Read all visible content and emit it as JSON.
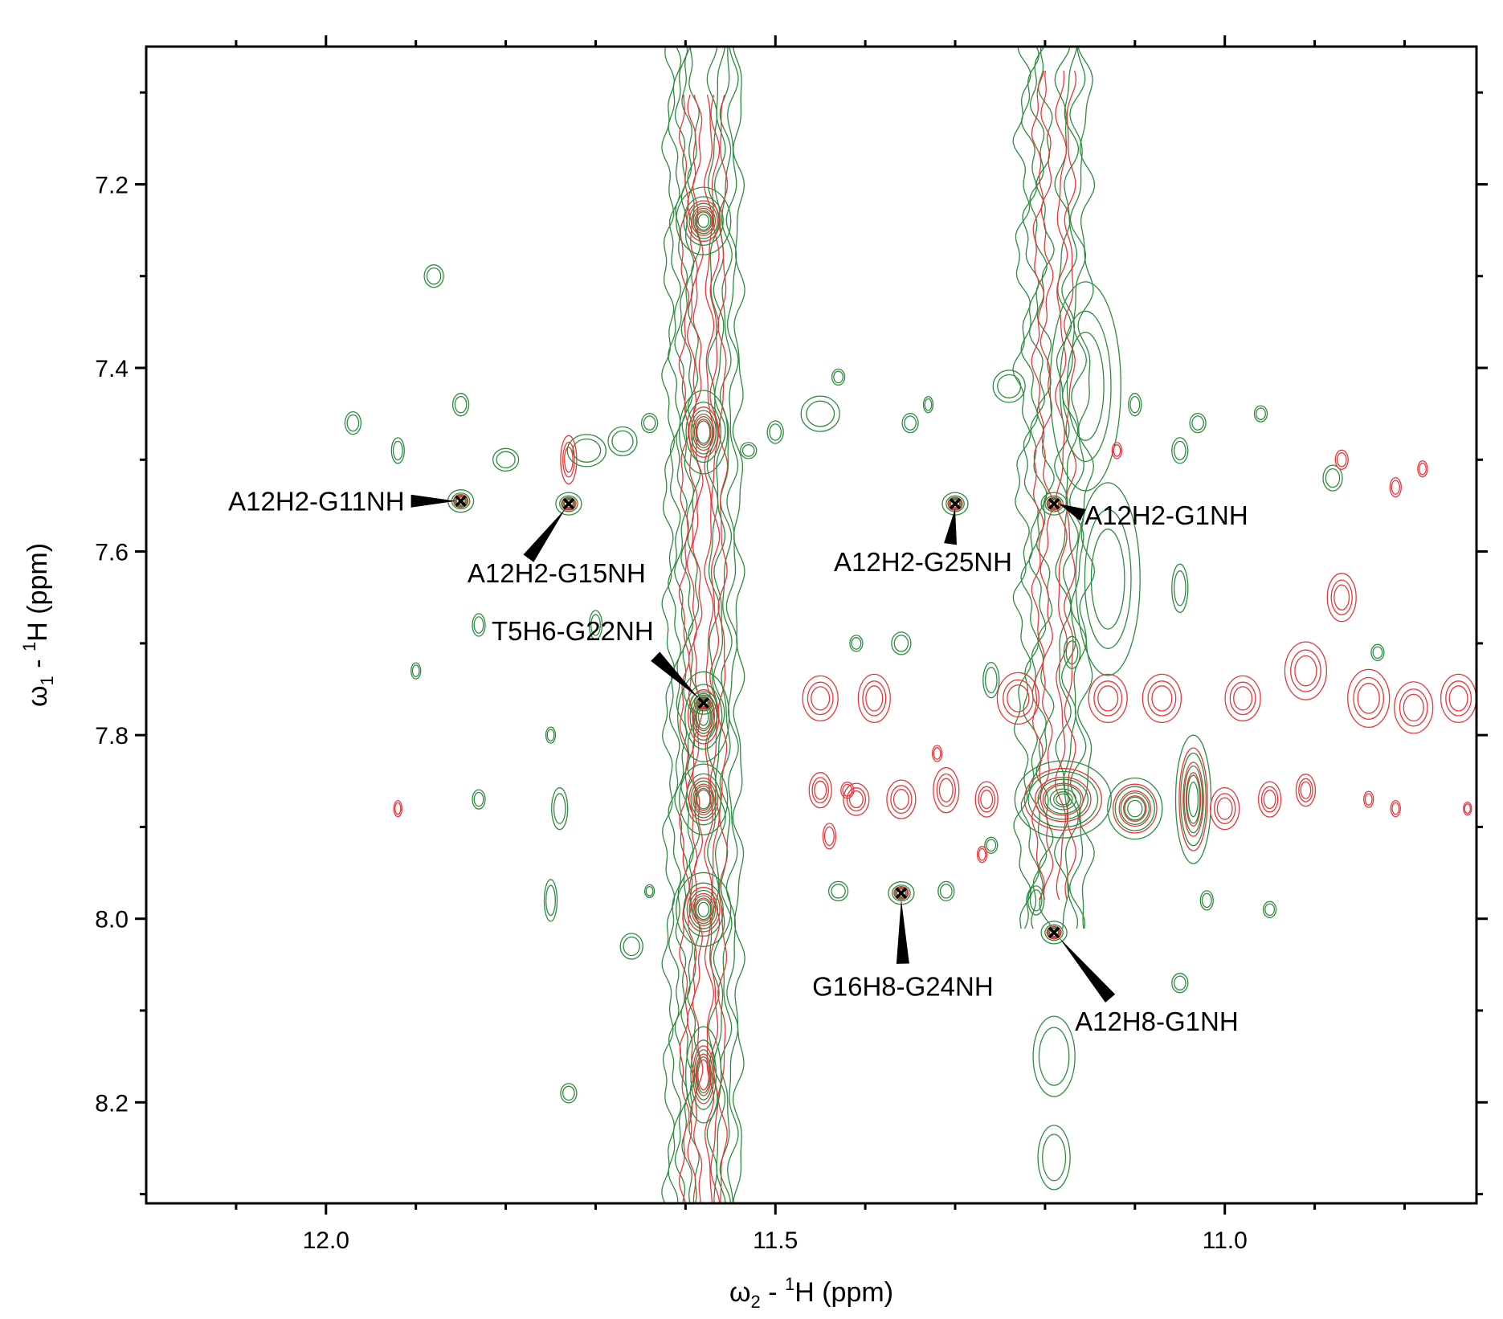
{
  "chart_data": {
    "type": "contour",
    "title": "",
    "xlabel": "ω2 - 1H  (ppm)",
    "xlabel_parts": {
      "main": "ω",
      "sub": "2",
      "mid": " - ",
      "sup": "1",
      "tail": "H  (ppm)"
    },
    "ylabel": "ω1 - 1H  (ppm)",
    "ylabel_parts": {
      "main": "ω",
      "sub": "1",
      "mid": " - ",
      "sup": "1",
      "tail": "H  (ppm)"
    },
    "xlim": [
      12.2,
      10.72
    ],
    "ylim": [
      7.05,
      8.31
    ],
    "x_reversed": true,
    "y_reversed": true,
    "x_ticks_major": [
      "12.0",
      "11.5",
      "11.0"
    ],
    "x_ticks_minor": [
      12.1,
      11.9,
      11.8,
      11.7,
      11.6,
      11.4,
      11.3,
      11.2,
      11.1,
      10.9,
      10.8
    ],
    "y_ticks_major": [
      "7.2",
      "7.4",
      "7.6",
      "7.8",
      "8.0",
      "8.2"
    ],
    "y_ticks_minor": [
      7.1,
      7.3,
      7.5,
      7.7,
      7.9,
      8.1,
      8.3
    ],
    "grid": false,
    "colors": {
      "green": "#2e8b3e",
      "red": "#e8363a"
    },
    "assigned_peaks": [
      {
        "label": "A12H2-G11NH",
        "x": 11.85,
        "y": 7.545
      },
      {
        "label": "A12H2-G15NH",
        "x": 11.73,
        "y": 7.548
      },
      {
        "label": "T5H6-G22NH",
        "x": 11.58,
        "y": 7.765
      },
      {
        "label": "A12H2-G25NH",
        "x": 11.3,
        "y": 7.548
      },
      {
        "label": "A12H2-G1NH",
        "x": 11.19,
        "y": 7.548
      },
      {
        "label": "G16H8-G24NH",
        "x": 11.36,
        "y": 7.972
      },
      {
        "label": "A12H8-G1NH",
        "x": 11.19,
        "y": 8.015
      }
    ]
  }
}
